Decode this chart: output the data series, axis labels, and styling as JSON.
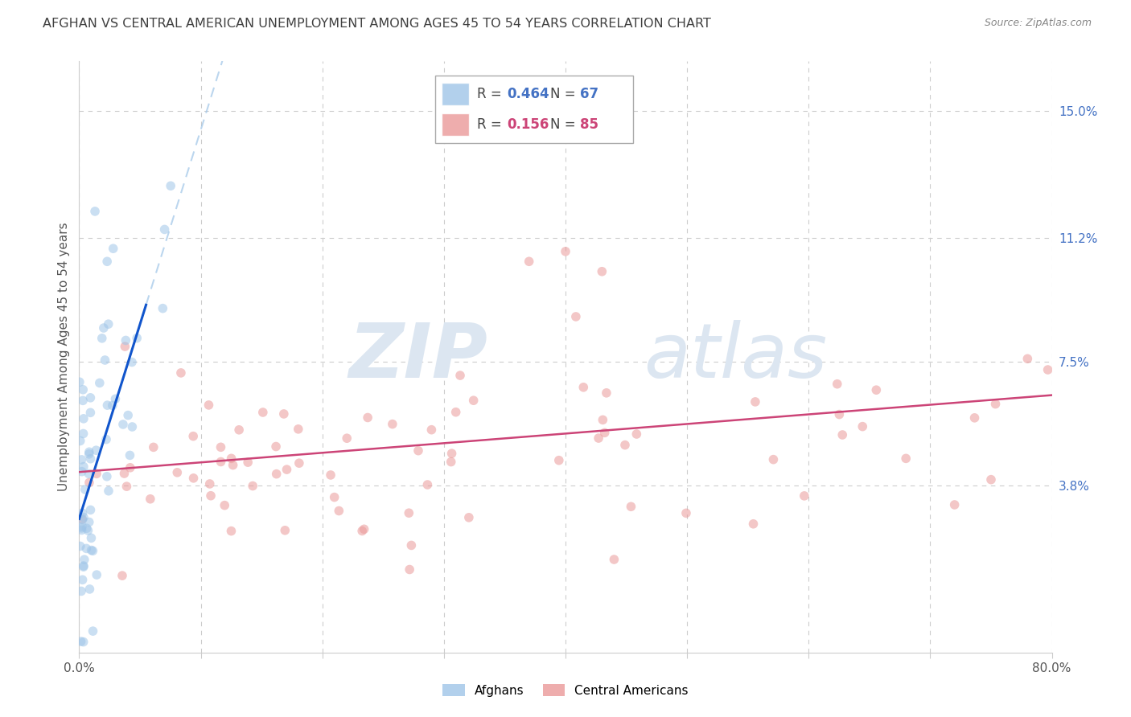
{
  "title": "AFGHAN VS CENTRAL AMERICAN UNEMPLOYMENT AMONG AGES 45 TO 54 YEARS CORRELATION CHART",
  "source": "Source: ZipAtlas.com",
  "ylabel": "Unemployment Among Ages 45 to 54 years",
  "xlim": [
    0.0,
    0.8
  ],
  "ylim": [
    -0.012,
    0.165
  ],
  "ytick_positions": [
    0.038,
    0.075,
    0.112,
    0.15
  ],
  "ytick_labels": [
    "3.8%",
    "7.5%",
    "11.2%",
    "15.0%"
  ],
  "legend_blue_r": "0.464",
  "legend_blue_n": "67",
  "legend_pink_r": "0.156",
  "legend_pink_n": "85",
  "blue_dot_color": "#9fc5e8",
  "pink_dot_color": "#ea9999",
  "blue_line_color": "#1155cc",
  "pink_line_color": "#cc4477",
  "blue_dash_color": "#9fc5e8",
  "grid_color": "#cccccc",
  "watermark_zip": "ZIP",
  "watermark_atlas": "atlas",
  "title_color": "#404040",
  "right_tick_color": "#4472c4",
  "legend_border_color": "#aaaaaa",
  "dot_size": 70,
  "dot_alpha": 0.55
}
